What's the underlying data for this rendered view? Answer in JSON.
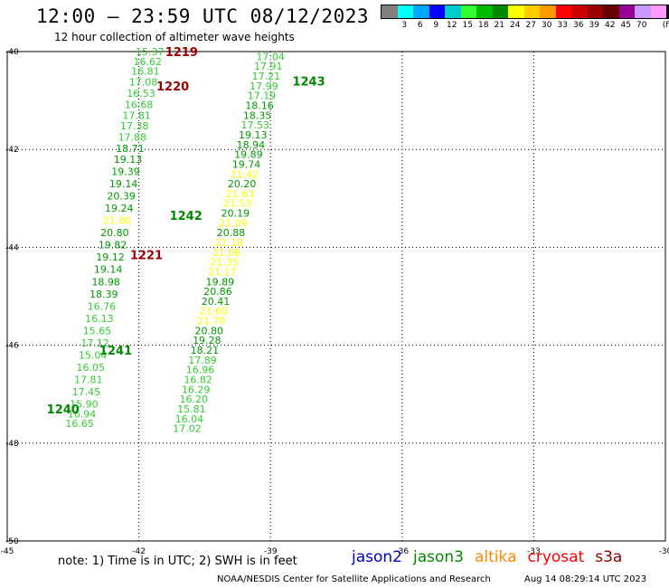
{
  "header": {
    "title": "12:00 – 23:59 UTC 08/12/2023",
    "subtitle": "12 hour collection of altimeter wave heights"
  },
  "legend": {
    "unit": "(ft)",
    "colors": [
      "#808080",
      "#00ffff",
      "#00a8ff",
      "#0000ff",
      "#00cccc",
      "#33ff33",
      "#00bb00",
      "#008800",
      "#ffff00",
      "#ffcc00",
      "#ff9900",
      "#ff0000",
      "#cc0000",
      "#990000",
      "#660000",
      "#990099",
      "#cc99ff",
      "#ff99ff",
      "#000000"
    ],
    "labels": [
      "3",
      "6",
      "9",
      "12",
      "15",
      "18",
      "21",
      "24",
      "27",
      "30",
      "33",
      "36",
      "39",
      "42",
      "45",
      "70"
    ]
  },
  "footer": {
    "note": "note:  1) Time is in UTC;  2) SWH is in feet",
    "missions": [
      {
        "name": "jason2",
        "color": "#0000cc"
      },
      {
        "name": "jason3",
        "color": "#008800"
      },
      {
        "name": "altika",
        "color": "#ff8800"
      },
      {
        "name": "cryosat",
        "color": "#ff0000"
      },
      {
        "name": "s3a",
        "color": "#880000"
      }
    ],
    "credit": "NOAA/NESDIS Center for Satellite Applications and Research",
    "timestamp": "Aug 14 08:29:14 UTC 2023"
  },
  "chart_data": {
    "type": "scatter",
    "xlim": [
      -45,
      -30
    ],
    "ylim": [
      -50,
      -40
    ],
    "x_ticks": [
      "-45",
      "-42",
      "-39",
      "-36",
      "-33",
      "-30"
    ],
    "x_tick_values": [
      -45,
      -42,
      -39,
      -36,
      -33,
      -30
    ],
    "y_ticks": [
      "-40",
      "-42",
      "-44",
      "-46",
      "-48",
      "-50"
    ],
    "y_tick_values": [
      -40,
      -42,
      -44,
      -46,
      -48,
      -50
    ],
    "grid": true,
    "passes": [
      {
        "id": "1219",
        "lon": -41.4,
        "lat": -40.0,
        "color": "#990000"
      },
      {
        "id": "1220",
        "lon": -41.6,
        "lat": -40.7,
        "color": "#990000"
      },
      {
        "id": "1221",
        "lon": -42.2,
        "lat": -44.15,
        "color": "#990000"
      },
      {
        "id": "1243",
        "lon": -38.5,
        "lat": -40.6,
        "color": "#008800"
      },
      {
        "id": "1242",
        "lon": -41.3,
        "lat": -43.35,
        "color": "#008800"
      },
      {
        "id": "1241",
        "lon": -42.9,
        "lat": -46.1,
        "color": "#008800"
      },
      {
        "id": "1240",
        "lon": -44.1,
        "lat": -47.3,
        "color": "#008800"
      }
    ],
    "tracks": [
      {
        "name": "1219/1220/1221",
        "points": [
          {
            "lon": -41.75,
            "lat": -40.0,
            "swh": "15.37",
            "color": "#33cc33"
          },
          {
            "lon": -41.8,
            "lat": -40.2,
            "swh": "16.62",
            "color": "#33cc33"
          },
          {
            "lon": -41.85,
            "lat": -40.4,
            "swh": "16.81",
            "color": "#33cc33"
          },
          {
            "lon": -41.9,
            "lat": -40.62,
            "swh": "17.08",
            "color": "#33cc33"
          },
          {
            "lon": -41.95,
            "lat": -40.85,
            "swh": "16.53",
            "color": "#33cc33"
          },
          {
            "lon": -42.0,
            "lat": -41.08,
            "swh": "16.68",
            "color": "#33cc33"
          },
          {
            "lon": -42.05,
            "lat": -41.3,
            "swh": "17.81",
            "color": "#33cc33"
          },
          {
            "lon": -42.1,
            "lat": -41.52,
            "swh": "17.38",
            "color": "#33cc33"
          },
          {
            "lon": -42.15,
            "lat": -41.75,
            "swh": "17.88",
            "color": "#33cc33"
          },
          {
            "lon": -42.2,
            "lat": -41.98,
            "swh": "18.71",
            "color": "#009900"
          },
          {
            "lon": -42.25,
            "lat": -42.2,
            "swh": "19.13",
            "color": "#009900"
          },
          {
            "lon": -42.3,
            "lat": -42.45,
            "swh": "19.39",
            "color": "#009900"
          },
          {
            "lon": -42.35,
            "lat": -42.7,
            "swh": "19.14",
            "color": "#009900"
          },
          {
            "lon": -42.4,
            "lat": -42.95,
            "swh": "20.39",
            "color": "#009900"
          },
          {
            "lon": -42.45,
            "lat": -43.2,
            "swh": "19.24",
            "color": "#009900"
          },
          {
            "lon": -42.5,
            "lat": -43.45,
            "swh": "21.80",
            "color": "#ffff00"
          },
          {
            "lon": -42.55,
            "lat": -43.7,
            "swh": "20.80",
            "color": "#009900"
          },
          {
            "lon": -42.6,
            "lat": -43.95,
            "swh": "19.82",
            "color": "#009900"
          },
          {
            "lon": -42.65,
            "lat": -44.2,
            "swh": "19.12",
            "color": "#009900"
          },
          {
            "lon": -42.7,
            "lat": -44.45,
            "swh": "19.14",
            "color": "#009900"
          },
          {
            "lon": -42.75,
            "lat": -44.7,
            "swh": "18.98",
            "color": "#009900"
          },
          {
            "lon": -42.8,
            "lat": -44.95,
            "swh": "18.39",
            "color": "#009900"
          },
          {
            "lon": -42.85,
            "lat": -45.2,
            "swh": "16.76",
            "color": "#33cc33"
          },
          {
            "lon": -42.9,
            "lat": -45.45,
            "swh": "16.13",
            "color": "#33cc33"
          },
          {
            "lon": -42.95,
            "lat": -45.7,
            "swh": "15.65",
            "color": "#33cc33"
          },
          {
            "lon": -43.0,
            "lat": -45.95,
            "swh": "17.12",
            "color": "#33cc33"
          },
          {
            "lon": -43.05,
            "lat": -46.2,
            "swh": "15.04",
            "color": "#33cc33"
          },
          {
            "lon": -43.1,
            "lat": -46.45,
            "swh": "16.05",
            "color": "#33cc33"
          },
          {
            "lon": -43.15,
            "lat": -46.7,
            "swh": "17.81",
            "color": "#33cc33"
          },
          {
            "lon": -43.2,
            "lat": -46.95,
            "swh": "17.45",
            "color": "#33cc33"
          },
          {
            "lon": -43.25,
            "lat": -47.2,
            "swh": "15.90",
            "color": "#33cc33"
          },
          {
            "lon": -43.3,
            "lat": -47.4,
            "swh": "16.94",
            "color": "#33cc33"
          },
          {
            "lon": -43.35,
            "lat": -47.6,
            "swh": "16.65",
            "color": "#33cc33"
          }
        ]
      },
      {
        "name": "1243/1242/1241/1240",
        "points": [
          {
            "lon": -39.0,
            "lat": -40.1,
            "swh": "17.04",
            "color": "#33cc33"
          },
          {
            "lon": -39.05,
            "lat": -40.3,
            "swh": "17.91",
            "color": "#33cc33"
          },
          {
            "lon": -39.1,
            "lat": -40.5,
            "swh": "17.21",
            "color": "#33cc33"
          },
          {
            "lon": -39.15,
            "lat": -40.7,
            "swh": "17.99",
            "color": "#33cc33"
          },
          {
            "lon": -39.2,
            "lat": -40.9,
            "swh": "17.19",
            "color": "#33cc33"
          },
          {
            "lon": -39.25,
            "lat": -41.1,
            "swh": "18.16",
            "color": "#009900"
          },
          {
            "lon": -39.3,
            "lat": -41.3,
            "swh": "18.35",
            "color": "#009900"
          },
          {
            "lon": -39.35,
            "lat": -41.5,
            "swh": "17.53",
            "color": "#33cc33"
          },
          {
            "lon": -39.4,
            "lat": -41.7,
            "swh": "19.13",
            "color": "#009900"
          },
          {
            "lon": -39.45,
            "lat": -41.9,
            "swh": "18.94",
            "color": "#009900"
          },
          {
            "lon": -39.5,
            "lat": -42.1,
            "swh": "19.89",
            "color": "#009900"
          },
          {
            "lon": -39.55,
            "lat": -42.3,
            "swh": "19.74",
            "color": "#009900"
          },
          {
            "lon": -39.6,
            "lat": -42.5,
            "swh": "21.42",
            "color": "#ffff00"
          },
          {
            "lon": -39.65,
            "lat": -42.7,
            "swh": "20.20",
            "color": "#009900"
          },
          {
            "lon": -39.7,
            "lat": -42.9,
            "swh": "21.63",
            "color": "#ffff00"
          },
          {
            "lon": -39.75,
            "lat": -43.1,
            "swh": "21.53",
            "color": "#ffff00"
          },
          {
            "lon": -39.8,
            "lat": -43.3,
            "swh": "20.19",
            "color": "#009900"
          },
          {
            "lon": -39.85,
            "lat": -43.5,
            "swh": "21.09",
            "color": "#ffff00"
          },
          {
            "lon": -39.9,
            "lat": -43.7,
            "swh": "20.88",
            "color": "#009900"
          },
          {
            "lon": -39.95,
            "lat": -43.9,
            "swh": "21.18",
            "color": "#ffff00"
          },
          {
            "lon": -40.0,
            "lat": -44.1,
            "swh": "21.06",
            "color": "#ffff00"
          },
          {
            "lon": -40.05,
            "lat": -44.3,
            "swh": "21.35",
            "color": "#ffff00"
          },
          {
            "lon": -40.1,
            "lat": -44.5,
            "swh": "21.17",
            "color": "#ffff00"
          },
          {
            "lon": -40.15,
            "lat": -44.7,
            "swh": "19.89",
            "color": "#009900"
          },
          {
            "lon": -40.2,
            "lat": -44.9,
            "swh": "20.86",
            "color": "#009900"
          },
          {
            "lon": -40.25,
            "lat": -45.1,
            "swh": "20.41",
            "color": "#009900"
          },
          {
            "lon": -40.3,
            "lat": -45.3,
            "swh": "21.60",
            "color": "#ffff00"
          },
          {
            "lon": -40.35,
            "lat": -45.5,
            "swh": "21.70",
            "color": "#ffff00"
          },
          {
            "lon": -40.4,
            "lat": -45.7,
            "swh": "20.80",
            "color": "#009900"
          },
          {
            "lon": -40.45,
            "lat": -45.9,
            "swh": "19.28",
            "color": "#009900"
          },
          {
            "lon": -40.5,
            "lat": -46.1,
            "swh": "18.21",
            "color": "#009900"
          },
          {
            "lon": -40.55,
            "lat": -46.3,
            "swh": "17.89",
            "color": "#33cc33"
          },
          {
            "lon": -40.6,
            "lat": -46.5,
            "swh": "16.96",
            "color": "#33cc33"
          },
          {
            "lon": -40.65,
            "lat": -46.7,
            "swh": "16.82",
            "color": "#33cc33"
          },
          {
            "lon": -40.7,
            "lat": -46.9,
            "swh": "16.29",
            "color": "#33cc33"
          },
          {
            "lon": -40.75,
            "lat": -47.1,
            "swh": "16.20",
            "color": "#33cc33"
          },
          {
            "lon": -40.8,
            "lat": -47.3,
            "swh": "15.81",
            "color": "#33cc33"
          },
          {
            "lon": -40.85,
            "lat": -47.5,
            "swh": "16.04",
            "color": "#33cc33"
          },
          {
            "lon": -40.9,
            "lat": -47.7,
            "swh": "17.02",
            "color": "#33cc33"
          }
        ]
      }
    ]
  }
}
